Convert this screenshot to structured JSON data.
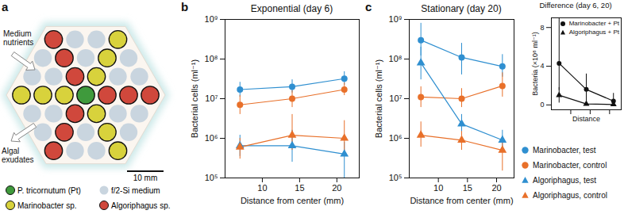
{
  "diagram": {
    "panel": "a",
    "legend": [
      {
        "name": "P. tricornutum (Pt)",
        "color": "#3f9a3c"
      },
      {
        "name": "f/2-Si medium",
        "color": "#c9d5df"
      },
      {
        "name": "Marinobacter sp.",
        "color": "#d8d23c"
      },
      {
        "name": "Algoriphagus sp.",
        "color": "#d0483c"
      }
    ],
    "wells": [
      [
        3,
        1,
        1,
        2
      ],
      [
        1,
        3,
        1,
        2,
        1
      ],
      [
        1,
        1,
        3,
        2,
        1,
        1
      ],
      [
        2,
        2,
        2,
        0,
        3,
        3,
        3
      ],
      [
        1,
        1,
        3,
        2,
        1,
        1
      ],
      [
        1,
        3,
        1,
        2,
        1
      ],
      [
        3,
        1,
        1,
        2
      ]
    ],
    "annotations": {
      "nutrients": "Medium nutrients",
      "exudates": "Algal exudates"
    },
    "scale_bar": "10 mm"
  },
  "chart_data": [
    {
      "panel": "b",
      "type": "line",
      "title": "Exponential (day 6)",
      "xlabel": "Distance from center (mm)",
      "ylabel": "Bacterial cells (ml⁻¹)",
      "x": [
        7,
        14,
        21
      ],
      "xlim": [
        5,
        23
      ],
      "xticks": [
        10,
        15,
        20
      ],
      "log": "y",
      "ylim": [
        100000,
        1000000000
      ],
      "yticks": [
        {
          "value": 100000,
          "label": "10⁵"
        },
        {
          "value": 1000000,
          "label": "10⁶"
        },
        {
          "value": 10000000,
          "label": "10⁷"
        },
        {
          "value": 100000000,
          "label": "10⁸"
        },
        {
          "value": 1000000000,
          "label": "10⁹"
        }
      ],
      "series": [
        {
          "name": "Marinobacter, test",
          "color": "#2f8fd0",
          "marker": "circle",
          "values": [
            17000000,
            20000000,
            32000000
          ],
          "error_low": [
            11000000,
            14000000,
            22000000
          ],
          "error_high": [
            26000000,
            30000000,
            48000000
          ]
        },
        {
          "name": "Marinobacter, control",
          "color": "#e8702a",
          "marker": "circle",
          "values": [
            7000000,
            10000000,
            17000000
          ],
          "error_low": [
            4000000,
            6000000,
            12000000
          ],
          "error_high": [
            12000000,
            16000000,
            25000000
          ]
        },
        {
          "name": "Algoriphagus, test",
          "color": "#2f8fd0",
          "marker": "triangle",
          "values": [
            650000,
            650000,
            400000
          ],
          "error_low": [
            350000,
            250000,
            100000
          ],
          "error_high": [
            1200000,
            1600000,
            800000
          ]
        },
        {
          "name": "Algoriphagus, control",
          "color": "#e8702a",
          "marker": "triangle",
          "values": [
            600000,
            1200000,
            1000000
          ],
          "error_low": [
            300000,
            500000,
            400000
          ],
          "error_high": [
            1000000,
            4000000,
            2800000
          ]
        }
      ]
    },
    {
      "panel": "c",
      "type": "line",
      "title": "Stationary (day 20)",
      "xlabel": "Distance from center (mm)",
      "ylabel": "Bacterial cells (ml⁻¹)",
      "x": [
        7,
        14,
        21
      ],
      "xlim": [
        5,
        23
      ],
      "xticks": [
        10,
        15,
        20
      ],
      "log": "y",
      "ylim": [
        100000,
        1000000000
      ],
      "yticks": [
        {
          "value": 100000,
          "label": "10⁵"
        },
        {
          "value": 1000000,
          "label": "10⁶"
        },
        {
          "value": 10000000,
          "label": "10⁷"
        },
        {
          "value": 100000000,
          "label": "10⁸"
        },
        {
          "value": 1000000000,
          "label": "10⁹"
        }
      ],
      "legend": "lower right",
      "series": [
        {
          "name": "Marinobacter, test",
          "color": "#2f8fd0",
          "marker": "circle",
          "values": [
            300000000,
            110000000,
            65000000
          ],
          "error_low": [
            120000000,
            40000000,
            35000000
          ],
          "error_high": [
            800000000,
            250000000,
            130000000
          ]
        },
        {
          "name": "Marinobacter, control",
          "color": "#e8702a",
          "marker": "circle",
          "values": [
            11000000,
            10000000,
            21000000
          ],
          "error_low": [
            6000000,
            6000000,
            11000000
          ],
          "error_high": [
            20000000,
            18000000,
            45000000
          ]
        },
        {
          "name": "Algoriphagus, test",
          "color": "#2f8fd0",
          "marker": "triangle",
          "values": [
            80000000,
            2300000,
            900000
          ],
          "error_low": [
            30000000,
            1300000,
            500000
          ],
          "error_high": [
            200000000,
            4000000,
            1600000
          ]
        },
        {
          "name": "Algoriphagus, control",
          "color": "#e8702a",
          "marker": "triangle",
          "values": [
            1200000,
            900000,
            500000
          ],
          "error_low": [
            600000,
            500000,
            150000
          ],
          "error_high": [
            2600000,
            1500000,
            1000000
          ]
        }
      ]
    },
    {
      "type": "line",
      "title": "Difference (day 6, 20)",
      "xlabel": "Distance",
      "ylabel": "Bacteria (×10⁸ ml⁻¹)",
      "x": [
        7,
        14,
        21
      ],
      "xlim": [
        5,
        23
      ],
      "xticks": [
        10,
        15,
        20
      ],
      "tick_labels": "y",
      "ylim": [
        -0.5,
        9
      ],
      "yticks": [
        0,
        4,
        8
      ],
      "legend": "upper right",
      "series": [
        {
          "name": "Marinobacter + Pt",
          "color": "#111111",
          "marker": "circle",
          "values": [
            4.3,
            1.6,
            0.4
          ],
          "error_low": [
            1.5,
            0.2,
            0
          ],
          "error_high": [
            9,
            3.2,
            1.2
          ]
        },
        {
          "name": "Algoriphagus + Pt",
          "color": "#111111",
          "marker": "triangle",
          "values": [
            1.0,
            0.1,
            0.05
          ],
          "error_low": [
            0.2,
            0,
            0
          ],
          "error_high": [
            1.8,
            0.5,
            0.2
          ]
        }
      ]
    }
  ]
}
